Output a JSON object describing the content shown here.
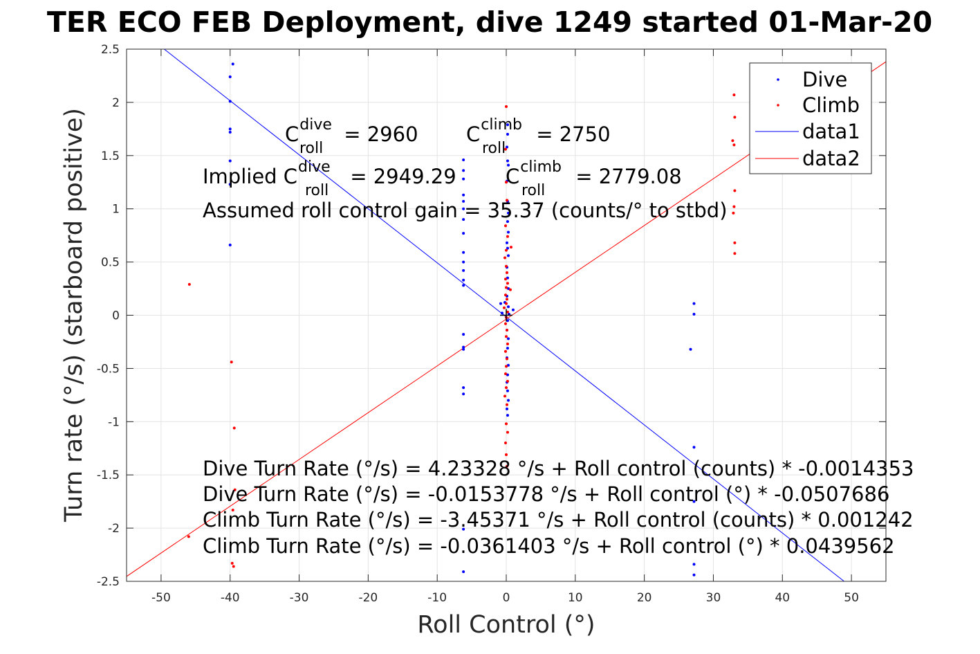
{
  "chart_data": {
    "type": "scatter",
    "title": "TER ECO FEB Deployment, dive 1249 started 01-Mar-20",
    "xlabel": "Roll Control (°)",
    "ylabel": "Turn rate (°/s) (starboard positive)",
    "xlim": [
      -55,
      55
    ],
    "ylim": [
      -2.5,
      2.5
    ],
    "xticks": [
      "-50",
      "-40",
      "-30",
      "-20",
      "-10",
      "0",
      "10",
      "20",
      "30",
      "40",
      "50"
    ],
    "yticks": [
      "2.5",
      "2",
      "1.5",
      "1",
      "0.5",
      "0",
      "-0.5",
      "-1",
      "-1.5",
      "-2",
      "-2.5"
    ],
    "grid": true,
    "legend_position": "top-right",
    "legend": [
      "Dive",
      "Climb",
      "data1",
      "data2"
    ],
    "colors": {
      "dive": "#0000ff",
      "climb": "#ff0000"
    },
    "series": [
      {
        "name": "Dive",
        "kind": "points",
        "points": [
          [
            -40,
            2.24
          ],
          [
            -39.6,
            2.36
          ],
          [
            -40,
            2.01
          ],
          [
            -40,
            1.75
          ],
          [
            -40,
            1.72
          ],
          [
            -40,
            1.45
          ],
          [
            -40,
            1.23
          ],
          [
            -40,
            0.66
          ],
          [
            -6.2,
            1.46
          ],
          [
            -6.2,
            1.36
          ],
          [
            -6.2,
            1.28
          ],
          [
            -6.2,
            1.13
          ],
          [
            -6.2,
            1.07
          ],
          [
            -6.2,
            1.0
          ],
          [
            -6.2,
            0.9
          ],
          [
            -6.2,
            0.77
          ],
          [
            -6.2,
            0.59
          ],
          [
            -6.2,
            0.5
          ],
          [
            -6.2,
            0.42
          ],
          [
            -6.2,
            0.33
          ],
          [
            -6.2,
            0.28
          ],
          [
            -6.2,
            -0.18
          ],
          [
            -6.2,
            -0.3
          ],
          [
            -6.2,
            -0.32
          ],
          [
            -6.2,
            -0.68
          ],
          [
            -6.2,
            -0.74
          ],
          [
            -6.2,
            -2.01
          ],
          [
            -6.2,
            -2.41
          ],
          [
            0.2,
            1.79
          ],
          [
            0.2,
            1.7
          ],
          [
            0.1,
            1.58
          ],
          [
            0.2,
            1.45
          ],
          [
            0.3,
            1.41
          ],
          [
            0.1,
            1.26
          ],
          [
            0.2,
            1.07
          ],
          [
            0.3,
            0.96
          ],
          [
            0.2,
            0.88
          ],
          [
            0.3,
            0.78
          ],
          [
            0.1,
            0.68
          ],
          [
            0.2,
            0.63
          ],
          [
            0.3,
            0.56
          ],
          [
            0.1,
            0.45
          ],
          [
            0.2,
            0.35
          ],
          [
            0.3,
            0.25
          ],
          [
            0.1,
            0.18
          ],
          [
            -0.2,
            0.12
          ],
          [
            0.3,
            0.08
          ],
          [
            -0.8,
            0.11
          ],
          [
            -0.6,
            0.02
          ],
          [
            0.4,
            0.01
          ],
          [
            1.0,
            0.05
          ],
          [
            0.2,
            -0.05
          ],
          [
            0.1,
            -0.14
          ],
          [
            0.3,
            -0.22
          ],
          [
            0.2,
            -0.31
          ],
          [
            0.1,
            -0.4
          ],
          [
            0.3,
            -0.47
          ],
          [
            0.2,
            -0.56
          ],
          [
            0.1,
            -0.63
          ],
          [
            0.2,
            -0.71
          ],
          [
            0.3,
            -0.8
          ],
          [
            0.1,
            -0.88
          ],
          [
            0.2,
            -0.94
          ],
          [
            26.7,
            -0.32
          ],
          [
            27.2,
            0.01
          ],
          [
            27.2,
            0.11
          ],
          [
            27.2,
            -1.24
          ],
          [
            27.2,
            -1.75
          ],
          [
            27.2,
            -2.34
          ],
          [
            27.2,
            -2.44
          ]
        ]
      },
      {
        "name": "Climb",
        "kind": "points",
        "points": [
          [
            -45.9,
            0.29
          ],
          [
            -46,
            -2.08
          ],
          [
            -39.8,
            -0.44
          ],
          [
            -39.4,
            -1.06
          ],
          [
            -39.6,
            -1.83
          ],
          [
            -39.3,
            -1.64
          ],
          [
            -39.7,
            -2.33
          ],
          [
            -39.5,
            -2.36
          ],
          [
            0.0,
            1.96
          ],
          [
            -0.1,
            1.56
          ],
          [
            0.0,
            1.25
          ],
          [
            0.1,
            1.08
          ],
          [
            -0.1,
            0.84
          ],
          [
            0.2,
            0.74
          ],
          [
            0.0,
            0.61
          ],
          [
            0.7,
            0.64
          ],
          [
            -0.2,
            0.54
          ],
          [
            0.0,
            0.46
          ],
          [
            0.1,
            0.4
          ],
          [
            -0.1,
            0.34
          ],
          [
            0.2,
            0.3
          ],
          [
            0.0,
            0.26
          ],
          [
            0.6,
            0.24
          ],
          [
            -0.1,
            0.19
          ],
          [
            0.1,
            0.15
          ],
          [
            0.0,
            0.11
          ],
          [
            -0.3,
            0.07
          ],
          [
            0.2,
            0.03
          ],
          [
            0.0,
            -0.02
          ],
          [
            -0.1,
            -0.08
          ],
          [
            0.1,
            -0.14
          ],
          [
            0.0,
            -0.2
          ],
          [
            0.2,
            -0.27
          ],
          [
            -0.1,
            -0.34
          ],
          [
            0.1,
            -0.41
          ],
          [
            0.0,
            -0.48
          ],
          [
            -0.1,
            -0.55
          ],
          [
            0.2,
            -0.62
          ],
          [
            0.0,
            -0.68
          ],
          [
            -0.2,
            -0.76
          ],
          [
            0.1,
            -0.84
          ],
          [
            0.0,
            -1.02
          ],
          [
            0.2,
            -1.1
          ],
          [
            -0.1,
            -1.2
          ],
          [
            0.0,
            -1.31
          ],
          [
            0.1,
            -1.42
          ],
          [
            33.0,
            2.07
          ],
          [
            33.1,
            1.86
          ],
          [
            32.8,
            1.64
          ],
          [
            33.0,
            1.6
          ],
          [
            33.1,
            1.17
          ],
          [
            33.0,
            1.02
          ],
          [
            32.9,
            0.96
          ],
          [
            33.1,
            0.68
          ],
          [
            33.1,
            0.58
          ]
        ]
      },
      {
        "name": "data1",
        "kind": "line",
        "x": [
          -55,
          55
        ],
        "y": [
          2.7767,
          -2.8074
        ]
      },
      {
        "name": "data2",
        "kind": "line",
        "x": [
          -55,
          55
        ],
        "y": [
          -2.4539,
          2.3816
        ]
      }
    ],
    "annotations": {
      "c_dive": {
        "base": "C",
        "sup": "dive",
        "sub": "roll",
        "rest": " = 2960"
      },
      "c_climb": {
        "base": "C",
        "sup": "climb",
        "sub": "roll",
        "rest": " = 2750"
      },
      "implied_dive": {
        "prefix": "Implied C",
        "sup": "dive",
        "sub": "roll",
        "rest": " = 2949.29"
      },
      "implied_climb": {
        "base": "C",
        "sup": "climb",
        "sub": "roll",
        "rest": " = 2779.08"
      },
      "gain": "Assumed roll control gain = 35.37 (counts/° to stbd)",
      "eq1": "Dive Turn Rate (°/s) = 4.23328 °/s + Roll control (counts) * -0.0014353",
      "eq2": "Dive Turn Rate (°/s) = -0.0153778 °/s + Roll control (°) * -0.0507686",
      "eq3": "Climb Turn Rate (°/s) = -3.45371 °/s + Roll control (counts) * 0.001242",
      "eq4": "Climb Turn Rate (°/s) = -0.0361403 °/s + Roll control (°) * 0.0439562"
    }
  }
}
